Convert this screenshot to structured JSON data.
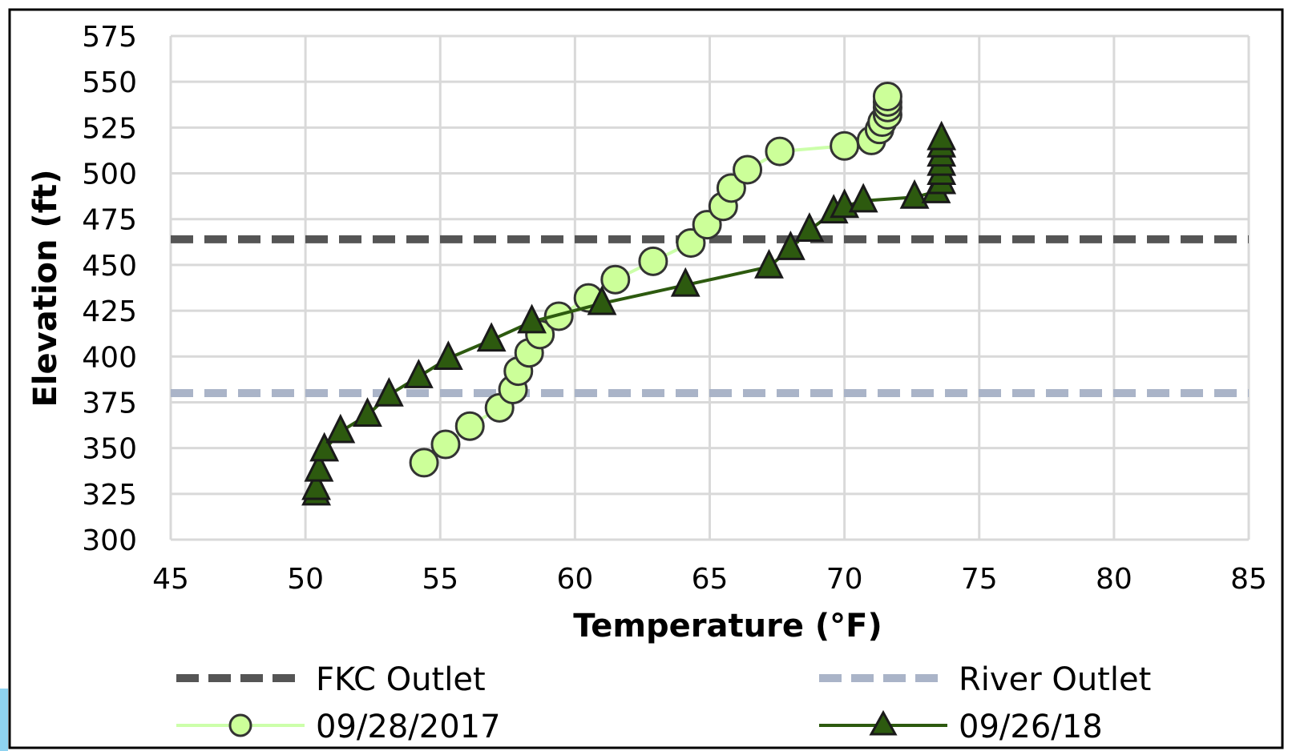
{
  "chart_data": {
    "type": "scatter",
    "xlabel": "Temperature (°F)",
    "ylabel": "Elevation (ft)",
    "xlim": [
      45,
      85
    ],
    "ylim": [
      300,
      575
    ],
    "x_ticks": [
      "45",
      "50",
      "55",
      "60",
      "65",
      "70",
      "75",
      "80",
      "85"
    ],
    "y_ticks": [
      "300",
      "325",
      "350",
      "375",
      "400",
      "425",
      "450",
      "475",
      "500",
      "525",
      "550",
      "575"
    ],
    "grid": true,
    "legend_position": "bottom",
    "reference_lines": [
      {
        "name": "FKC Outlet",
        "orientation": "horizontal",
        "y": 464,
        "style": "dashed",
        "color": "#555555"
      },
      {
        "name": "River Outlet",
        "orientation": "horizontal",
        "y": 380,
        "style": "dashed",
        "color": "#aab4c8"
      }
    ],
    "series": [
      {
        "name": "09/28/2017",
        "marker": "circle",
        "line_color": "#ccffaa",
        "marker_fill": "#ccff99",
        "marker_edge": "#333333",
        "points": [
          {
            "x": 54.4,
            "y": 342
          },
          {
            "x": 55.2,
            "y": 352
          },
          {
            "x": 56.1,
            "y": 362
          },
          {
            "x": 57.2,
            "y": 372
          },
          {
            "x": 57.7,
            "y": 382
          },
          {
            "x": 57.9,
            "y": 392
          },
          {
            "x": 58.3,
            "y": 402
          },
          {
            "x": 58.7,
            "y": 412
          },
          {
            "x": 59.4,
            "y": 422
          },
          {
            "x": 60.5,
            "y": 432
          },
          {
            "x": 61.5,
            "y": 442
          },
          {
            "x": 62.9,
            "y": 452
          },
          {
            "x": 64.3,
            "y": 462
          },
          {
            "x": 64.9,
            "y": 472
          },
          {
            "x": 65.5,
            "y": 482
          },
          {
            "x": 65.8,
            "y": 492
          },
          {
            "x": 66.4,
            "y": 502
          },
          {
            "x": 67.6,
            "y": 512
          },
          {
            "x": 70.0,
            "y": 515
          },
          {
            "x": 71.0,
            "y": 518
          },
          {
            "x": 71.3,
            "y": 524
          },
          {
            "x": 71.4,
            "y": 528
          },
          {
            "x": 71.6,
            "y": 532
          },
          {
            "x": 71.6,
            "y": 536
          },
          {
            "x": 71.6,
            "y": 539
          },
          {
            "x": 71.6,
            "y": 542
          }
        ]
      },
      {
        "name": "09/26/18",
        "marker": "triangle",
        "line_color": "#2d5a0f",
        "marker_fill": "#2d5a0f",
        "marker_edge": "#1a1a1a",
        "points": [
          {
            "x": 50.4,
            "y": 325
          },
          {
            "x": 50.4,
            "y": 328
          },
          {
            "x": 50.5,
            "y": 338
          },
          {
            "x": 50.7,
            "y": 349
          },
          {
            "x": 51.3,
            "y": 359
          },
          {
            "x": 52.3,
            "y": 368
          },
          {
            "x": 53.1,
            "y": 379
          },
          {
            "x": 54.2,
            "y": 389
          },
          {
            "x": 55.3,
            "y": 399
          },
          {
            "x": 56.9,
            "y": 409
          },
          {
            "x": 58.4,
            "y": 419
          },
          {
            "x": 61.0,
            "y": 429
          },
          {
            "x": 64.1,
            "y": 439
          },
          {
            "x": 67.2,
            "y": 449
          },
          {
            "x": 68.0,
            "y": 459
          },
          {
            "x": 68.7,
            "y": 469
          },
          {
            "x": 69.6,
            "y": 479
          },
          {
            "x": 70.0,
            "y": 482
          },
          {
            "x": 70.7,
            "y": 485
          },
          {
            "x": 72.6,
            "y": 487
          },
          {
            "x": 73.4,
            "y": 490
          },
          {
            "x": 73.6,
            "y": 495
          },
          {
            "x": 73.6,
            "y": 500
          },
          {
            "x": 73.6,
            "y": 505
          },
          {
            "x": 73.6,
            "y": 510
          },
          {
            "x": 73.6,
            "y": 515
          },
          {
            "x": 73.6,
            "y": 519
          }
        ]
      }
    ]
  },
  "legend": {
    "fkc_label": "FKC Outlet",
    "river_label": "River Outlet",
    "series1_label": "09/28/2017",
    "series2_label": "09/26/18"
  },
  "colors": {
    "grid": "#d9d9d9",
    "frame": "#000000",
    "fkc": "#555555",
    "river": "#aab4c8",
    "series1_line": "#ccffaa",
    "series1_fill": "#ccff99",
    "series2": "#2d5a0f"
  }
}
